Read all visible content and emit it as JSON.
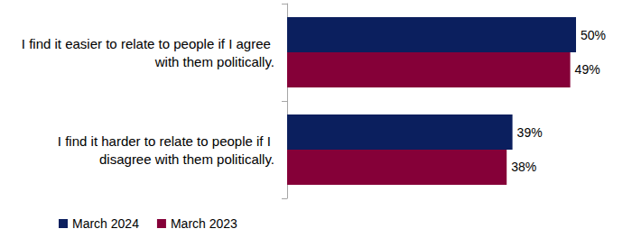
{
  "chart_data": {
    "type": "bar",
    "orientation": "horizontal",
    "categories": [
      "I find it easier to relate to people if I agree with them politically.",
      "I find it harder to relate to people if I disagree with them politically."
    ],
    "series": [
      {
        "name": "March 2024",
        "color": "#0b1f5e",
        "values": [
          50,
          39
        ],
        "value_labels": [
          "50%",
          "39%"
        ]
      },
      {
        "name": "March 2023",
        "color": "#850038",
        "values": [
          49,
          38
        ],
        "value_labels": [
          "49%",
          "38%"
        ]
      }
    ],
    "xlim": [
      0,
      55
    ],
    "grid": false,
    "legend": "lower left",
    "data_labels": true,
    "tick_labels": "y"
  }
}
